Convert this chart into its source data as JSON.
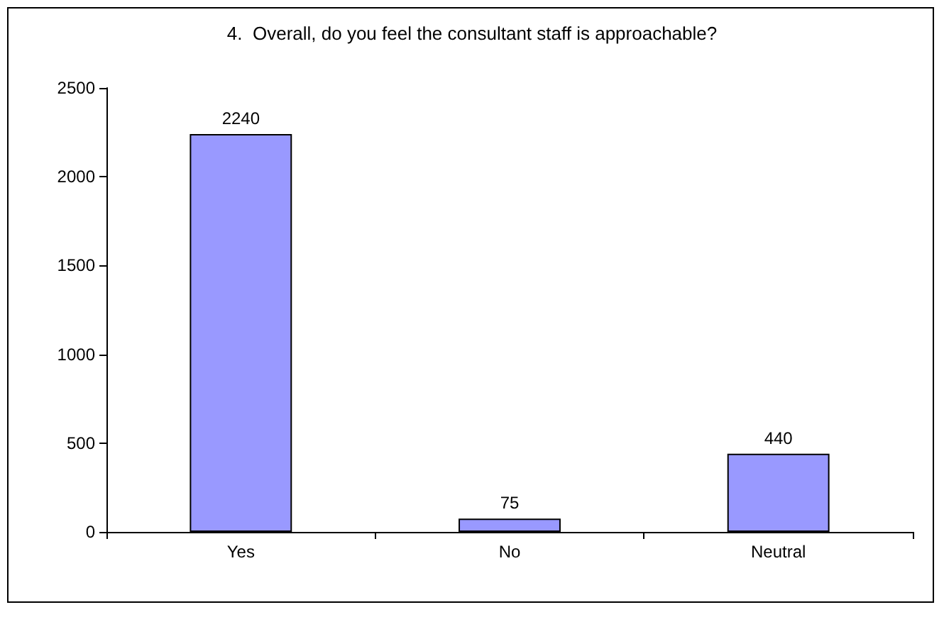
{
  "chart_data": {
    "type": "bar",
    "title": "4.  Overall, do you feel the consultant staff is approachable?",
    "categories": [
      "Yes",
      "No",
      "Neutral"
    ],
    "values": [
      2240,
      75,
      440
    ],
    "color": "#9999ff",
    "ylim": [
      0,
      2500
    ],
    "yticks": [
      0,
      500,
      1000,
      1500,
      2000,
      2500
    ],
    "data_labels": true,
    "grid": false
  }
}
